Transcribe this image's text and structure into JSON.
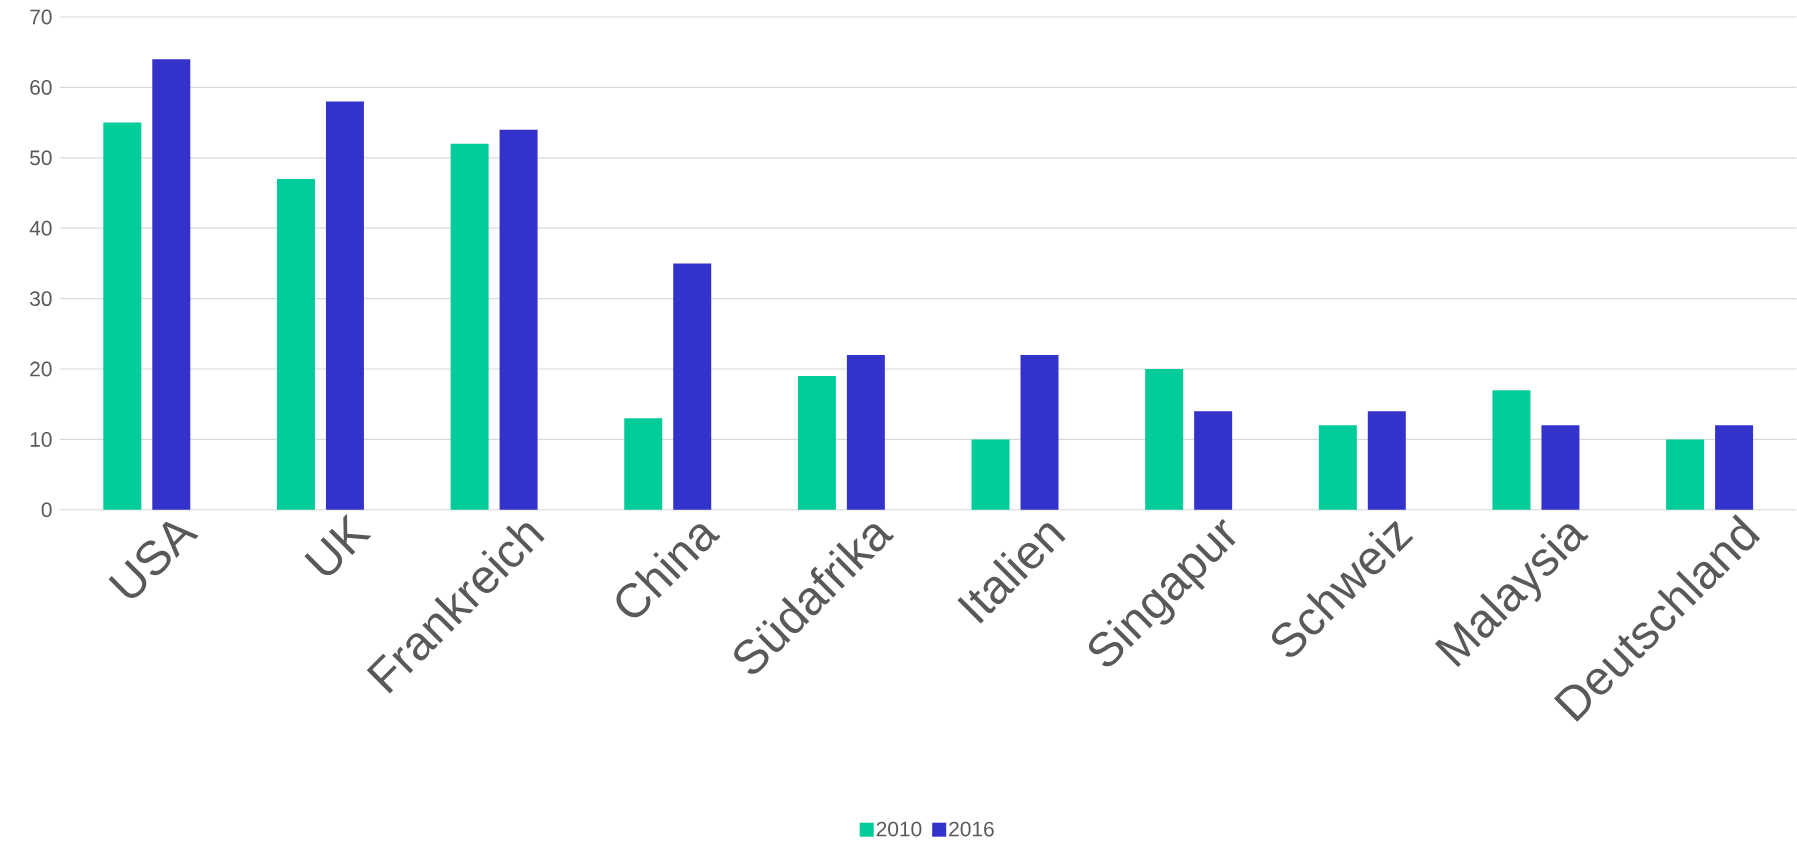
{
  "chart_data": {
    "type": "bar",
    "categories": [
      "USA",
      "UK",
      "Frankreich",
      "China",
      "Südafrika",
      "Italien",
      "Singapur",
      "Schweiz",
      "Malaysia",
      "Deutschland"
    ],
    "series": [
      {
        "name": "2010",
        "color": "#00cc99",
        "values": [
          55,
          47,
          52,
          13,
          19,
          10,
          20,
          12,
          17,
          10
        ]
      },
      {
        "name": "2016",
        "color": "#3333cc",
        "values": [
          64,
          58,
          54,
          35,
          22,
          22,
          14,
          14,
          12,
          12
        ]
      }
    ],
    "ylim": [
      0,
      70
    ],
    "yticks": [
      0,
      10,
      20,
      30,
      40,
      50,
      60,
      70
    ],
    "grid": "y",
    "legend": "bottom"
  }
}
